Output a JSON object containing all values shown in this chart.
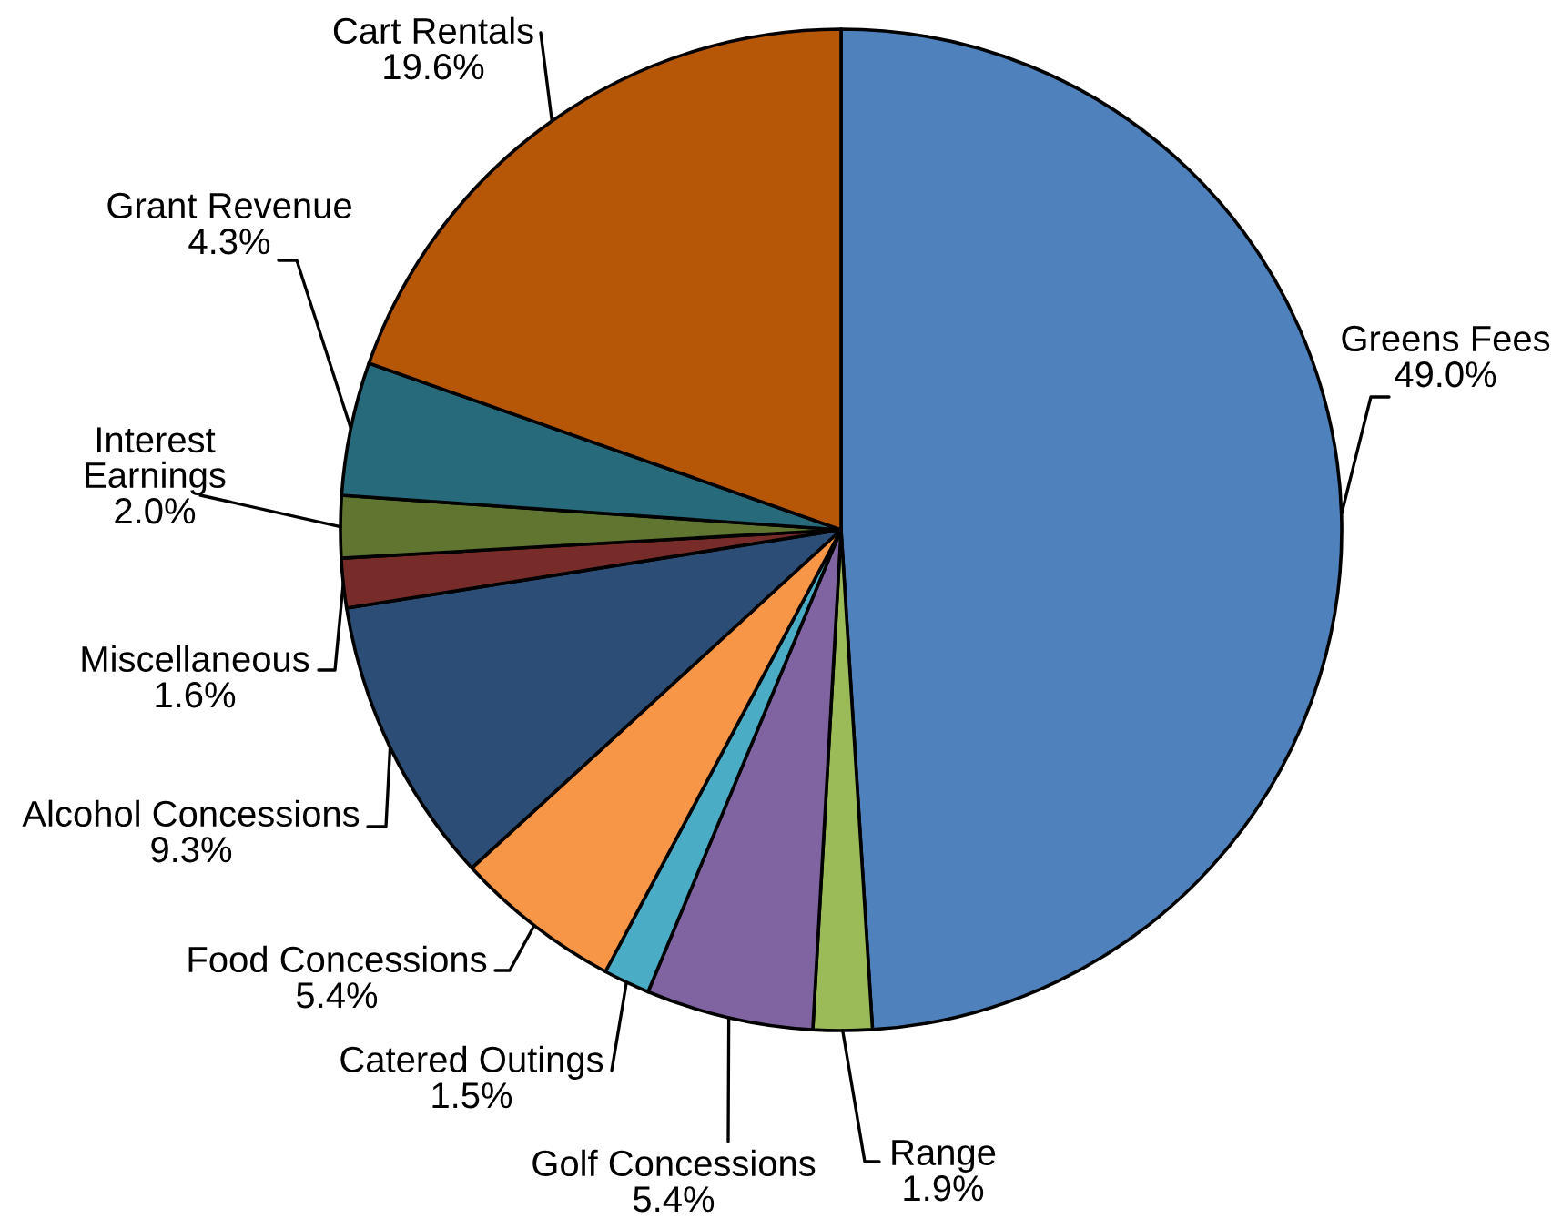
{
  "chart_data": {
    "type": "pie",
    "categories": [
      "Greens Fees",
      "Range",
      "Golf Concessions",
      "Catered Outings",
      "Food Concessions",
      "Alcohol Concessions",
      "Miscellaneous",
      "Interest Earnings",
      "Grant Revenue",
      "Cart Rentals"
    ],
    "values": [
      49.0,
      1.9,
      5.4,
      1.5,
      5.4,
      9.3,
      1.6,
      2.0,
      4.3,
      19.6
    ],
    "value_labels": [
      "49.0%",
      "1.9%",
      "5.4%",
      "1.5%",
      "5.4%",
      "9.3%",
      "1.6%",
      "2.0%",
      "4.3%",
      "19.6%"
    ],
    "colors": [
      "#4f81bd",
      "#9bbb59",
      "#8064a2",
      "#4bacc6",
      "#f79646",
      "#2c4d75",
      "#772c2a",
      "#5f7530",
      "#276a7c",
      "#b65708"
    ]
  }
}
